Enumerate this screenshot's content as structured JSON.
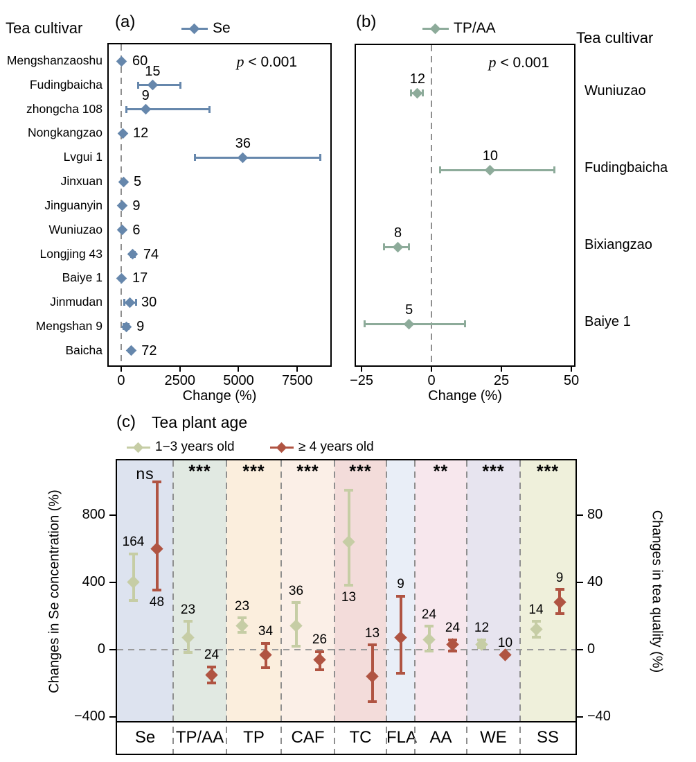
{
  "chart_data": [
    {
      "type": "scatter",
      "panel": "a",
      "panel_label": "(a)",
      "side_header": "Tea cultivar",
      "legend": {
        "label": "Se",
        "color": "#6687ac"
      },
      "p_label": {
        "var": "p",
        "rest": " < 0.001"
      },
      "xlabel": "Change (%)",
      "x_ticks": [
        0,
        2500,
        5000,
        7500
      ],
      "x_range": [
        -530,
        8910
      ],
      "rows": [
        {
          "cultivar": "Mengshanzaoshu",
          "n": 60,
          "mean": 30,
          "lo": 30,
          "hi": 30,
          "label_side": "right"
        },
        {
          "cultivar": "Fudingbaicha",
          "n": 15,
          "mean": 1340,
          "lo": 720,
          "hi": 2530,
          "label_side": "above"
        },
        {
          "cultivar": "zhongcha 108",
          "n": 9,
          "mean": 1040,
          "lo": 210,
          "hi": 3780,
          "label_side": "above"
        },
        {
          "cultivar": "Nongkangzao",
          "n": 12,
          "mean": 60,
          "lo": 60,
          "hi": 60,
          "label_side": "right"
        },
        {
          "cultivar": "Lvgui 1",
          "n": 36,
          "mean": 5190,
          "lo": 3130,
          "hi": 8490,
          "label_side": "above"
        },
        {
          "cultivar": "Jinxuan",
          "n": 5,
          "mean": 90,
          "lo": 90,
          "hi": 90,
          "label_side": "right"
        },
        {
          "cultivar": "Jinguanyin",
          "n": 9,
          "mean": 40,
          "lo": 40,
          "hi": 40,
          "label_side": "right"
        },
        {
          "cultivar": "Wuniuzao",
          "n": 6,
          "mean": 40,
          "lo": 40,
          "hi": 40,
          "label_side": "right"
        },
        {
          "cultivar": "Longjing 43",
          "n": 74,
          "mean": 500,
          "lo": 420,
          "hi": 590,
          "label_side": "right"
        },
        {
          "cultivar": "Baiye 1",
          "n": 17,
          "mean": 30,
          "lo": 30,
          "hi": 30,
          "label_side": "right"
        },
        {
          "cultivar": "Jinmudan",
          "n": 30,
          "mean": 360,
          "lo": 130,
          "hi": 650,
          "label_side": "right"
        },
        {
          "cultivar": "Mengshan 9",
          "n": 9,
          "mean": 210,
          "lo": 90,
          "hi": 330,
          "label_side": "right"
        },
        {
          "cultivar": "Baicha",
          "n": 72,
          "mean": 420,
          "lo": 420,
          "hi": 420,
          "label_side": "right"
        }
      ]
    },
    {
      "type": "scatter",
      "panel": "b",
      "panel_label": "(b)",
      "side_header": "Tea cultivar",
      "legend": {
        "label": "TP/AA",
        "color": "#8dab9a"
      },
      "p_label": {
        "var": "p",
        "rest": " < 0.001"
      },
      "xlabel": "Change (%)",
      "x_ticks": [
        -25,
        0,
        25,
        50
      ],
      "x_range": [
        -27,
        51
      ],
      "rows": [
        {
          "cultivar": "Wuniuzao",
          "n": 12,
          "mean": -5,
          "lo": -7.5,
          "hi": -3,
          "label_side": "above"
        },
        {
          "cultivar": "Fudingbaicha",
          "n": 10,
          "mean": 21,
          "lo": 3,
          "hi": 44,
          "label_side": "above"
        },
        {
          "cultivar": "Bixiangzao",
          "n": 8,
          "mean": -12,
          "lo": -17,
          "hi": -8,
          "label_side": "above"
        },
        {
          "cultivar": "Baiye 1",
          "n": 5,
          "mean": -8,
          "lo": -24,
          "hi": 12,
          "label_side": "above"
        }
      ]
    },
    {
      "type": "scatter",
      "panel": "c",
      "panel_label": "(c)",
      "title": "Tea plant age",
      "series": [
        {
          "key": "young",
          "label": "1−3 years old",
          "color": "#c6cda5"
        },
        {
          "key": "old",
          "label": "≥ 4 years old",
          "color": "#b05442"
        }
      ],
      "ylabel_left": "Changes in Se concentration (%)",
      "ylabel_right": "Changes in tea quality (%)",
      "left_ticks": [
        800,
        400,
        0,
        -400
      ],
      "right_ticks": [
        80,
        40,
        0,
        -40
      ],
      "right_range": [
        -43,
        112
      ],
      "se_axis_scale": 10,
      "groups": [
        {
          "name": "Se",
          "axis": "left",
          "sig": "ns",
          "band": "#dde3ef",
          "w": 81,
          "young": {
            "n": 164,
            "mean": 400,
            "lo": 290,
            "hi": 570,
            "label_side": "above"
          },
          "old": {
            "n": 48,
            "mean": 600,
            "lo": 350,
            "hi": 1000,
            "label_side": "below"
          }
        },
        {
          "name": "TP/AA",
          "axis": "right",
          "sig": "***",
          "band": "#e1e9e2",
          "w": 77,
          "young": {
            "n": 23,
            "mean": 7,
            "lo": -2,
            "hi": 17,
            "label_side": "above"
          },
          "old": {
            "n": 24,
            "mean": -15,
            "lo": -20,
            "hi": -10,
            "label_side": "above"
          }
        },
        {
          "name": "TP",
          "axis": "right",
          "sig": "***",
          "band": "#fbeedd",
          "w": 79,
          "young": {
            "n": 23,
            "mean": 14,
            "lo": 10,
            "hi": 19,
            "label_side": "above"
          },
          "old": {
            "n": 34,
            "mean": -3,
            "lo": -11,
            "hi": 4,
            "label_side": "above"
          }
        },
        {
          "name": "CAF",
          "axis": "right",
          "sig": "***",
          "band": "#fbefe7",
          "w": 77,
          "young": {
            "n": 36,
            "mean": 14,
            "lo": 2,
            "hi": 28,
            "label_side": "above"
          },
          "old": {
            "n": 26,
            "mean": -6,
            "lo": -12,
            "hi": -1,
            "label_side": "above"
          }
        },
        {
          "name": "TC",
          "axis": "right",
          "sig": "***",
          "band": "#f3dcda",
          "w": 75,
          "young": {
            "n": 13,
            "mean": 64,
            "lo": 38,
            "hi": 95,
            "label_side": "below"
          },
          "old": {
            "n": 13,
            "mean": -16,
            "lo": -31,
            "hi": 3,
            "label_side": "above"
          }
        },
        {
          "name": "FLA",
          "axis": "right",
          "sig": "",
          "band": "#e9eef7",
          "w": 41,
          "old": {
            "n": 9,
            "mean": 7,
            "lo": -14,
            "hi": 32,
            "label_side": "above"
          }
        },
        {
          "name": "AA",
          "axis": "right",
          "sig": "**",
          "band": "#f7e7ed",
          "w": 75,
          "young": {
            "n": 24,
            "mean": 6,
            "lo": -1,
            "hi": 14,
            "label_side": "above"
          },
          "old": {
            "n": 24,
            "mean": 3,
            "lo": -1,
            "hi": 6,
            "label_side": "above"
          }
        },
        {
          "name": "WE",
          "axis": "right",
          "sig": "***",
          "band": "#e7e4ef",
          "w": 77,
          "young": {
            "n": 12,
            "mean": 3,
            "lo": 1,
            "hi": 6,
            "label_side": "above"
          },
          "old": {
            "n": 10,
            "mean": -3,
            "lo": -3,
            "hi": -3,
            "label_side": "above"
          }
        },
        {
          "name": "SS",
          "axis": "right",
          "sig": "***",
          "band": "#eff0db",
          "w": 80,
          "young": {
            "n": 14,
            "mean": 12,
            "lo": 7,
            "hi": 17,
            "label_side": "above"
          },
          "old": {
            "n": 9,
            "mean": 28,
            "lo": 21,
            "hi": 36,
            "label_side": "above"
          }
        }
      ]
    }
  ]
}
